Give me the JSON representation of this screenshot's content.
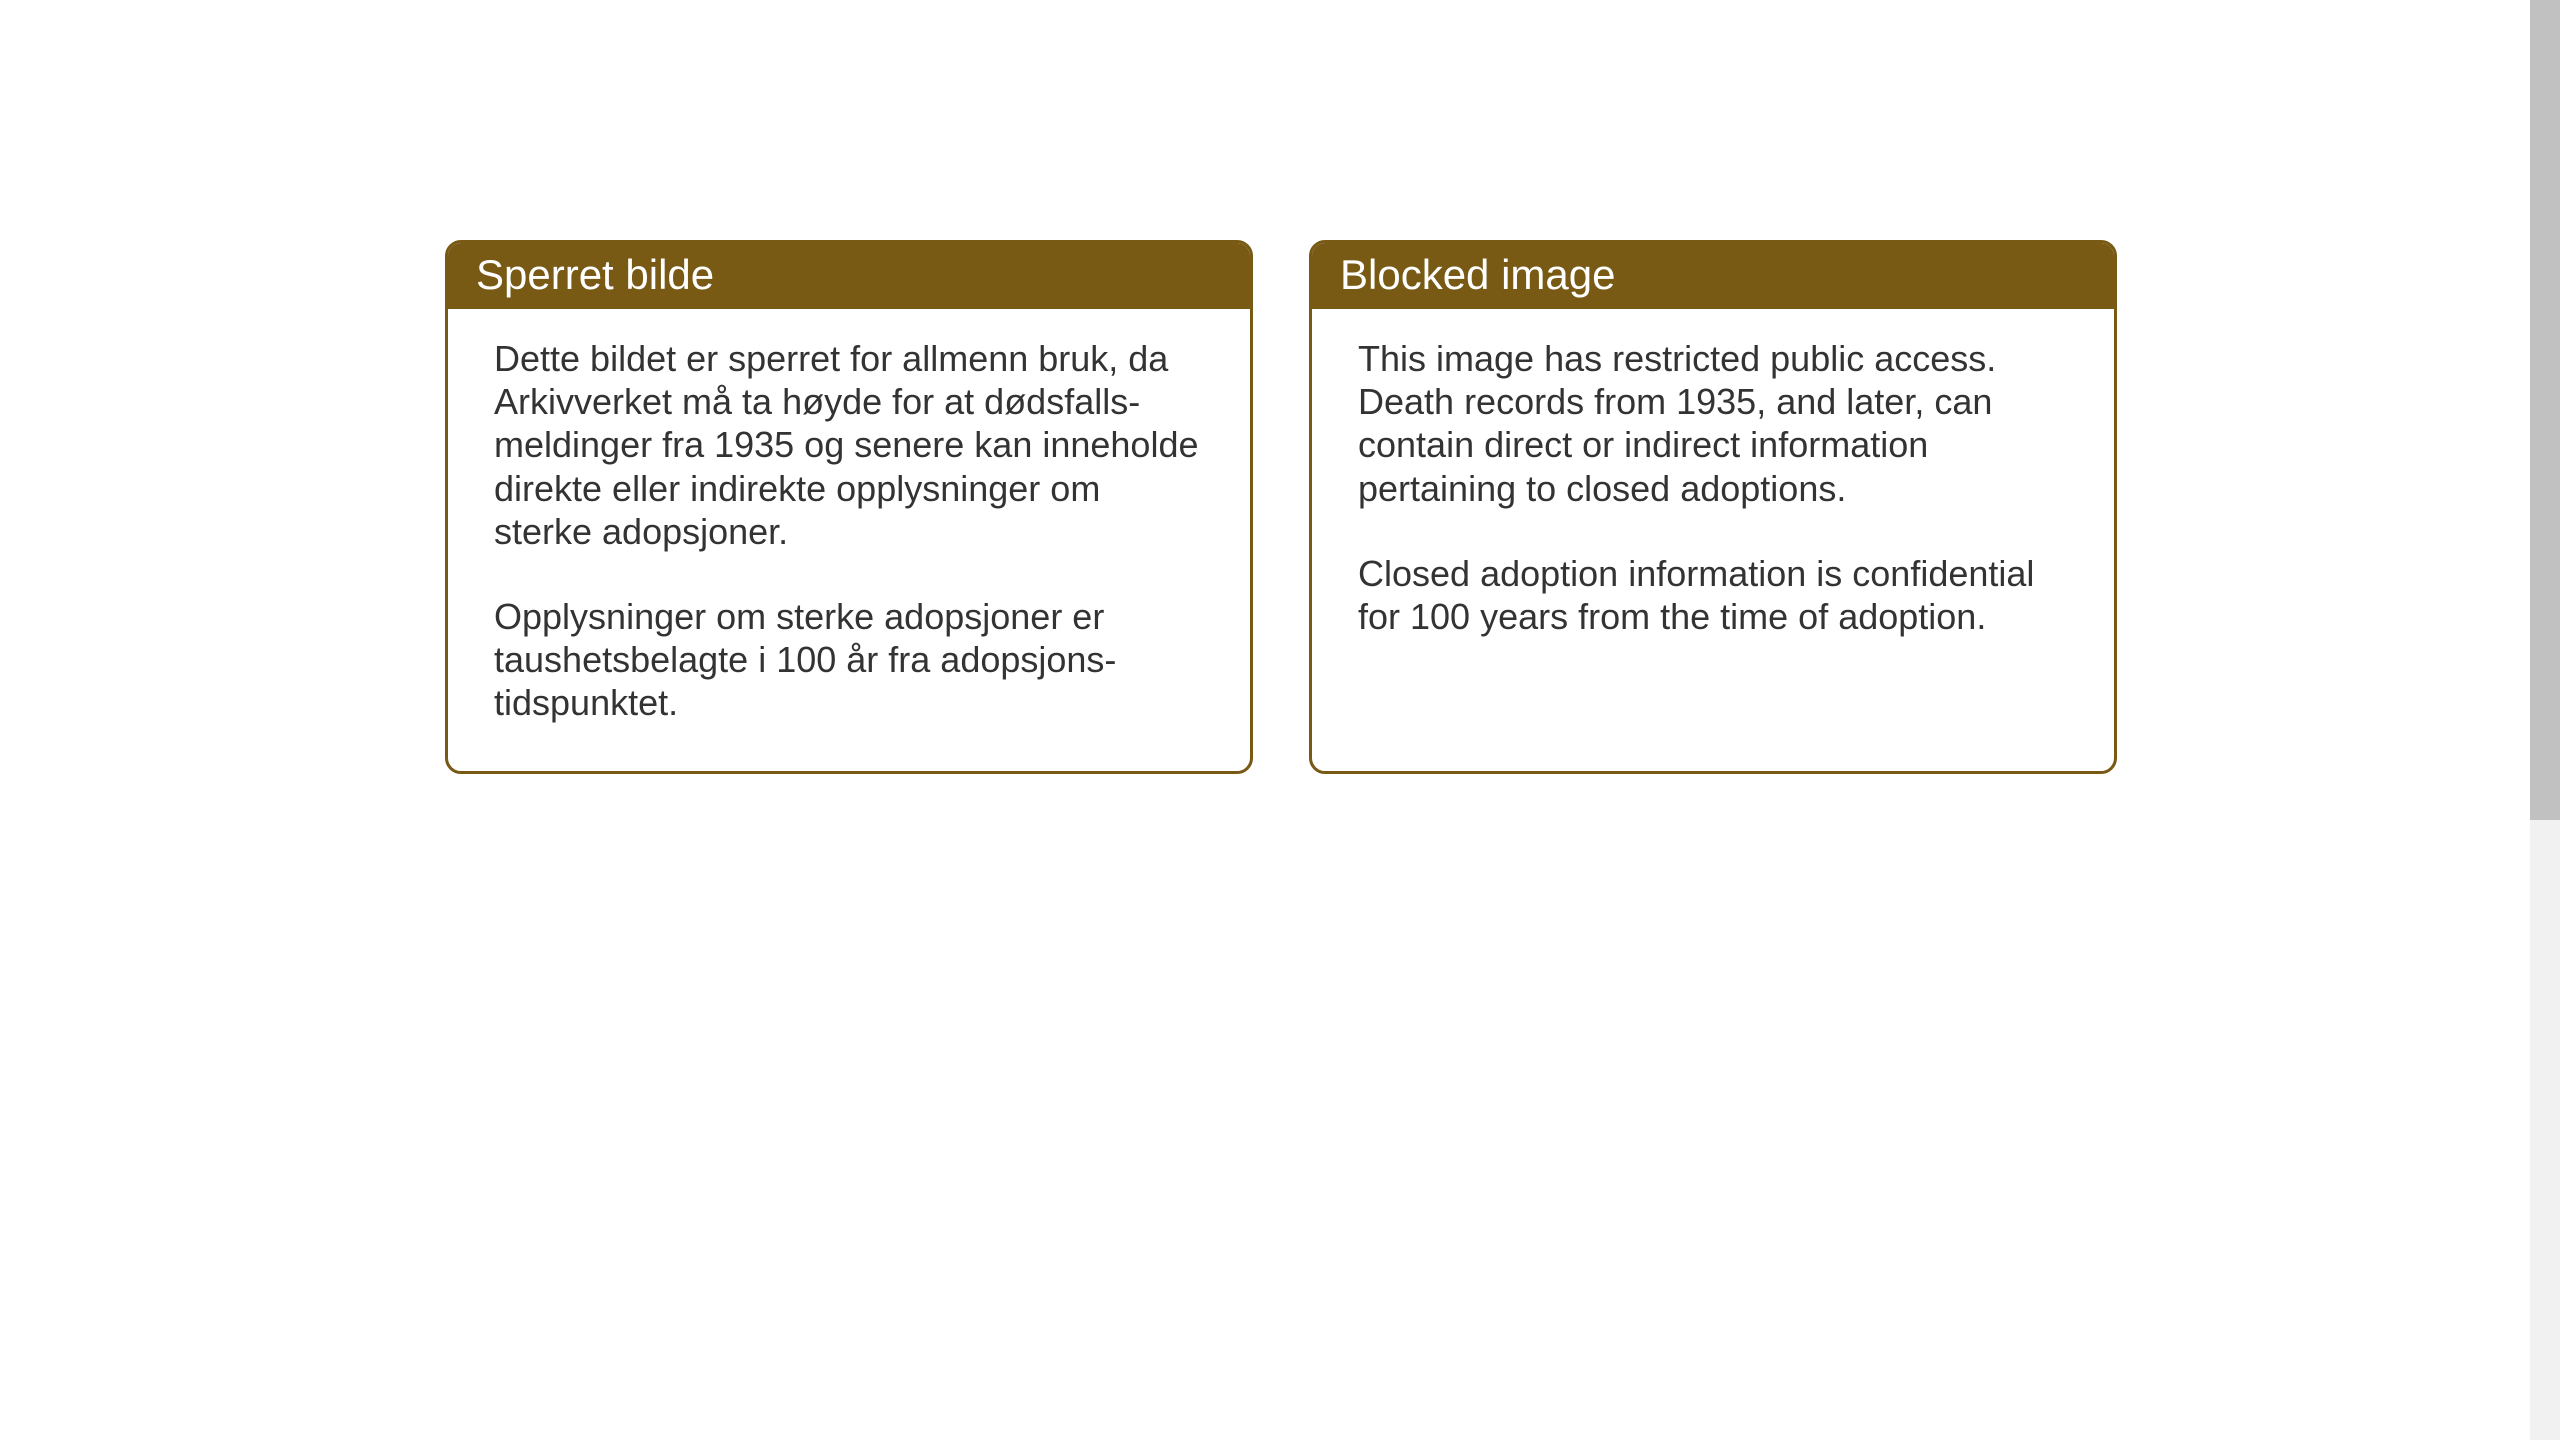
{
  "cards": {
    "left": {
      "title": "Sperret bilde",
      "paragraph1": "Dette bildet er sperret for allmenn bruk, da Arkivverket må ta høyde for at dødsfalls-meldinger fra 1935 og senere kan inneholde direkte eller indirekte opplysninger om sterke adopsjoner.",
      "paragraph2": "Opplysninger om sterke adopsjoner er taushetsbelagte i 100 år fra adopsjons-tidspunktet."
    },
    "right": {
      "title": "Blocked image",
      "paragraph1": "This image has restricted public access. Death records from 1935, and later, can contain direct or indirect information pertaining to closed adoptions.",
      "paragraph2": "Closed adoption information is confidential for 100 years from the time of adoption."
    }
  },
  "styling": {
    "header_bg_color": "#785a15",
    "border_color": "#785a15",
    "header_text_color": "#ffffff",
    "body_text_color": "#333333",
    "header_font_size": 42,
    "body_font_size": 36,
    "card_border_radius": 16,
    "card_border_width": 3,
    "background_color": "#ffffff",
    "scrollbar_track_color": "#f1f1f1",
    "scrollbar_thumb_color": "#c1c1c1"
  }
}
